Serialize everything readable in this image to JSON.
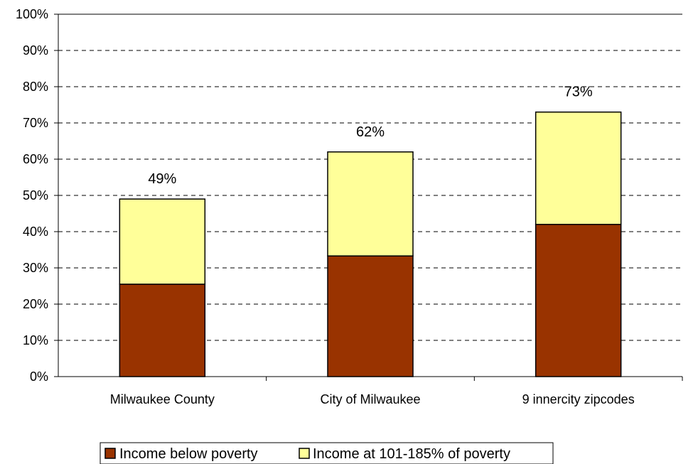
{
  "chart_data": {
    "type": "bar",
    "stacked": true,
    "categories": [
      "Milwaukee County",
      "City of Milwaukee",
      "9 innercity zipcodes"
    ],
    "series": [
      {
        "name": "Income below poverty",
        "values": [
          25.5,
          33.3,
          42.0
        ],
        "color": "#993300"
      },
      {
        "name": "Income at 101-185% of poverty",
        "values": [
          23.5,
          28.7,
          31.0
        ],
        "color": "#FFFF99"
      }
    ],
    "totals": [
      49,
      62,
      73
    ],
    "total_labels": [
      "49%",
      "62%",
      "73%"
    ],
    "ylim": [
      0,
      100
    ],
    "yticks": [
      0,
      10,
      20,
      30,
      40,
      50,
      60,
      70,
      80,
      90,
      100
    ],
    "ytick_labels": [
      "0%",
      "10%",
      "20%",
      "30%",
      "40%",
      "50%",
      "60%",
      "70%",
      "80%",
      "90%",
      "100%"
    ],
    "grid": "horizontal dashed",
    "legend_position": "bottom",
    "title": "",
    "xlabel": "",
    "ylabel": ""
  }
}
